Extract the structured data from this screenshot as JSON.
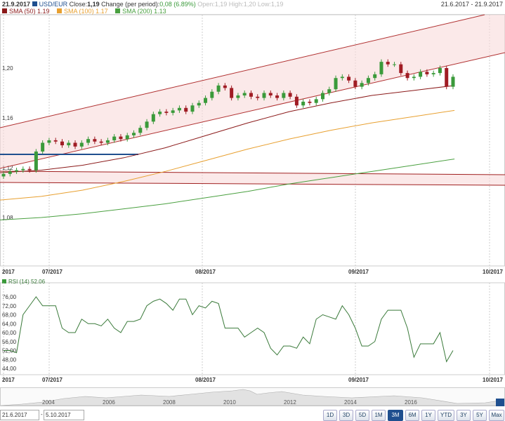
{
  "header": {
    "date": "21.9.2017",
    "symbol": "USD/EUR",
    "close_label": "Close:",
    "close": "1,19",
    "change_label": "Change (per period):",
    "change": "0,08 (6.89%)",
    "ohl": "Open:1,19 High:1,20 Low:1,19",
    "range": "21.6.2017 - 21.9.2017",
    "sma50": "SMA (50) 1.19",
    "sma100": "SMA (100) 1.17",
    "sma200": "SMA (200) 1.13"
  },
  "colors": {
    "up": "#3a9a3a",
    "down": "#a01c24",
    "sma50": "#8b1a1a",
    "sma100": "#e8a030",
    "sma200": "#4aa040",
    "symbol": "#1f4f8f"
  },
  "main": {
    "y_ticks": [
      "1,20",
      "1,16",
      "1,12",
      "1,08"
    ],
    "y_values": [
      1.2,
      1.16,
      1.12,
      1.08
    ],
    "x_labels": [
      "2017",
      "07/2017",
      "08/2017",
      "09/2017",
      "10/2017"
    ],
    "closes": [
      1.115,
      1.117,
      1.118,
      1.119,
      1.118,
      1.133,
      1.14,
      1.142,
      1.141,
      1.138,
      1.14,
      1.137,
      1.14,
      1.143,
      1.141,
      1.14,
      1.142,
      1.145,
      1.143,
      1.146,
      1.148,
      1.152,
      1.157,
      1.163,
      1.165,
      1.164,
      1.166,
      1.168,
      1.165,
      1.17,
      1.172,
      1.176,
      1.181,
      1.186,
      1.184,
      1.176,
      1.178,
      1.18,
      1.177,
      1.176,
      1.18,
      1.178,
      1.176,
      1.18,
      1.177,
      1.17,
      1.173,
      1.172,
      1.175,
      1.18,
      1.183,
      1.192,
      1.193,
      1.19,
      1.185,
      1.188,
      1.192,
      1.195,
      1.205,
      1.203,
      1.203,
      1.196,
      1.192,
      1.193,
      1.197,
      1.195,
      1.196,
      1.2,
      1.185,
      1.193
    ],
    "sma50": [
      1.116,
      1.118,
      1.122,
      1.128,
      1.136,
      1.146,
      1.156,
      1.165,
      1.172,
      1.178,
      1.182,
      1.186
    ],
    "sma100": [
      1.094,
      1.097,
      1.102,
      1.109,
      1.117,
      1.126,
      1.135,
      1.143,
      1.15,
      1.156,
      1.161,
      1.166
    ],
    "sma200": [
      1.078,
      1.08,
      1.083,
      1.087,
      1.091,
      1.096,
      1.101,
      1.107,
      1.112,
      1.117,
      1.122,
      1.127
    ]
  },
  "rsi": {
    "label": "RSI (14) 52.06",
    "y_ticks": [
      "76,00",
      "72,00",
      "68,00",
      "64,00",
      "60,00",
      "56,00",
      "52,00",
      "48,00",
      "44,00"
    ],
    "values": [
      52,
      52,
      51,
      68,
      72,
      76,
      72,
      72,
      72,
      62,
      60,
      60,
      66,
      64,
      64,
      63,
      66,
      62,
      60,
      65,
      65,
      66,
      72,
      74,
      75,
      73,
      70,
      75,
      75,
      68,
      72,
      71,
      74,
      73,
      62,
      62,
      62,
      58,
      60,
      62,
      60,
      53,
      50,
      54,
      54,
      53,
      58,
      55,
      66,
      68,
      67,
      66,
      72,
      68,
      62,
      54,
      54,
      56,
      66,
      70,
      70,
      70,
      62,
      49,
      55,
      55,
      55,
      60,
      47,
      52
    ]
  },
  "x_labels2": [
    "2017",
    "07/2017",
    "08/2017",
    "09/2017",
    "10/2017"
  ],
  "navigator": {
    "years": [
      "2004",
      "2006",
      "2008",
      "2010",
      "2012",
      "2014",
      "2016"
    ]
  },
  "range_inputs": {
    "from": "21.6.2017",
    "sep": "-",
    "to": "5.10.2017"
  },
  "buttons": [
    "1D",
    "3D",
    "5D",
    "1M",
    "3M",
    "6M",
    "1Y",
    "YTD",
    "3Y",
    "5Y",
    "Max"
  ],
  "active_button": "3M"
}
